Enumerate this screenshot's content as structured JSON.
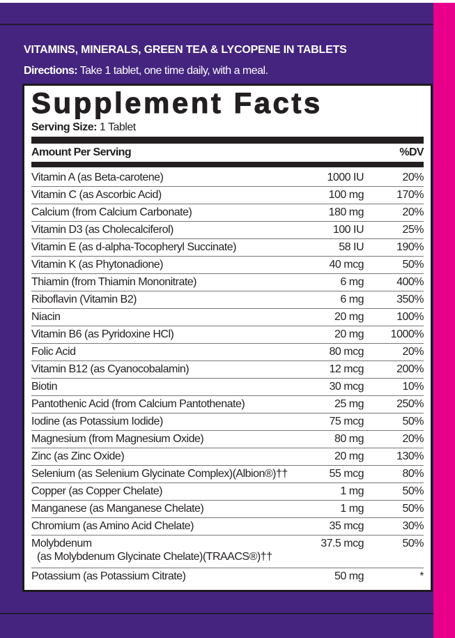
{
  "colors": {
    "background": "#44247f",
    "accent_stripe": "#e8008a",
    "panel": "#ffffff",
    "text": "#231f20"
  },
  "headline": "VITAMINS, MINERALS, GREEN TEA & LYCOPENE IN TABLETS",
  "directions": {
    "label": "Directions:",
    "text": " Take 1 tablet, one time daily, with a meal."
  },
  "facts": {
    "title": "Supplement Facts",
    "serving_label": "Serving Size:",
    "serving_value": " 1 Tablet",
    "amount_header": "Amount Per Serving",
    "dv_header": "%DV",
    "rows": [
      {
        "name": "Vitamin A (as Beta-carotene)",
        "amount": "1000 IU",
        "dv": "20%"
      },
      {
        "name": "Vitamin C (as Ascorbic Acid)",
        "amount": "100 mg",
        "dv": "170%"
      },
      {
        "name": "Calcium (from Calcium Carbonate)",
        "amount": "180 mg",
        "dv": "20%"
      },
      {
        "name": "Vitamin D3 (as Cholecalciferol)",
        "amount": "100 IU",
        "dv": "25%"
      },
      {
        "name": "Vitamin E (as d-alpha-Tocopheryl Succinate)",
        "amount": "58 IU",
        "dv": "190%"
      },
      {
        "name": "Vitamin K (as Phytonadione)",
        "amount": "40 mcg",
        "dv": "50%"
      },
      {
        "name": "Thiamin (from Thiamin Mononitrate)",
        "amount": "6 mg",
        "dv": "400%"
      },
      {
        "name": "Riboflavin (Vitamin B2)",
        "amount": "6 mg",
        "dv": "350%"
      },
      {
        "name": "Niacin",
        "amount": "20 mg",
        "dv": "100%"
      },
      {
        "name": "Vitamin B6 (as Pyridoxine HCl)",
        "amount": "20 mg",
        "dv": "1000%"
      },
      {
        "name": "Folic Acid",
        "amount": "80 mcg",
        "dv": "20%"
      },
      {
        "name": "Vitamin B12 (as Cyanocobalamin)",
        "amount": "12 mcg",
        "dv": "200%"
      },
      {
        "name": "Biotin",
        "amount": "30 mcg",
        "dv": "10%"
      },
      {
        "name": "Pantothenic Acid (from Calcium Pantothenate)",
        "amount": "25 mg",
        "dv": "250%"
      },
      {
        "name": "Iodine (as Potassium Iodide)",
        "amount": "75 mcg",
        "dv": "50%"
      },
      {
        "name": "Magnesium (from Magnesium Oxide)",
        "amount": "80 mg",
        "dv": "20%"
      },
      {
        "name": "Zinc (as Zinc Oxide)",
        "amount": "20 mg",
        "dv": "130%"
      },
      {
        "name": "Selenium (as Selenium Glycinate Complex)(Albion®)††",
        "amount": "55 mcg",
        "dv": "80%"
      },
      {
        "name": "Copper (as Copper Chelate)",
        "amount": "1 mg",
        "dv": "50%"
      },
      {
        "name": "Manganese (as Manganese Chelate)",
        "amount": "1 mg",
        "dv": "50%"
      },
      {
        "name": "Chromium (as Amino Acid Chelate)",
        "amount": "35 mcg",
        "dv": "30%"
      },
      {
        "name": "Molybdenum",
        "name_line2": "(as Molybdenum Glycinate Chelate)(TRAACS®)††",
        "amount": "37.5 mcg",
        "dv": "50%"
      },
      {
        "name": "Potassium (as Potassium Citrate)",
        "amount": "50 mg",
        "dv": "*"
      }
    ]
  }
}
